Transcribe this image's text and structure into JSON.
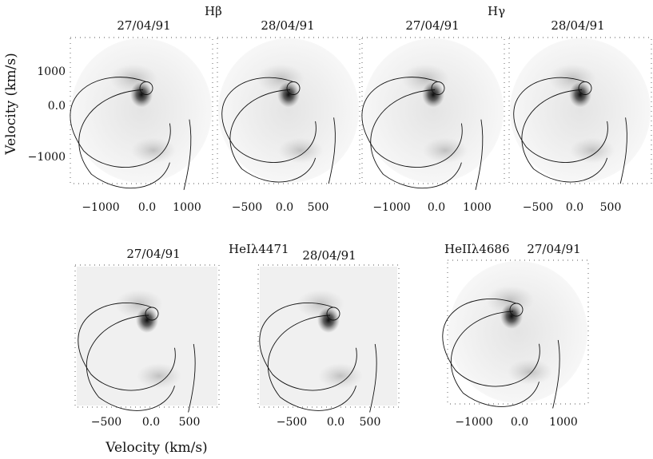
{
  "figure": {
    "top_row_group_labels": [
      {
        "id": "hbeta",
        "text": "Hβ"
      },
      {
        "id": "hgamma",
        "text": "Hγ"
      }
    ],
    "bottom_row_group_labels": [
      {
        "id": "hei",
        "text": "HeIλ4471"
      },
      {
        "id": "heii",
        "text": "HeIIλ4686"
      }
    ],
    "y_axis_title": "Velocity (km/s)",
    "x_axis_title": "Velocity (km/s)",
    "y_tick_labels": [
      "1000",
      "0.0",
      "−1000"
    ]
  },
  "panels": [
    {
      "id": "p1",
      "date": "27/04/91",
      "shape": "circle",
      "x_ticks": [
        "−1000",
        "0.0",
        "1000"
      ]
    },
    {
      "id": "p2",
      "date": "28/04/91",
      "shape": "circle",
      "x_ticks": [
        "−500",
        "0.0",
        "500"
      ]
    },
    {
      "id": "p3",
      "date": "27/04/91",
      "shape": "circle",
      "x_ticks": [
        "−1000",
        "0.0",
        "1000"
      ]
    },
    {
      "id": "p4",
      "date": "28/04/91",
      "shape": "circle",
      "x_ticks": [
        "−500",
        "0.0",
        "500"
      ]
    },
    {
      "id": "p5",
      "date": "27/04/91",
      "shape": "square",
      "x_ticks": [
        "−500",
        "0.0",
        "500"
      ]
    },
    {
      "id": "p6",
      "date": "28/04/91",
      "shape": "square",
      "x_ticks": [
        "−500",
        "0.0",
        "500"
      ]
    },
    {
      "id": "p7",
      "date": "27/04/91",
      "shape": "circle",
      "x_ticks": [
        "−1000",
        "0.0",
        "1000"
      ]
    }
  ]
}
